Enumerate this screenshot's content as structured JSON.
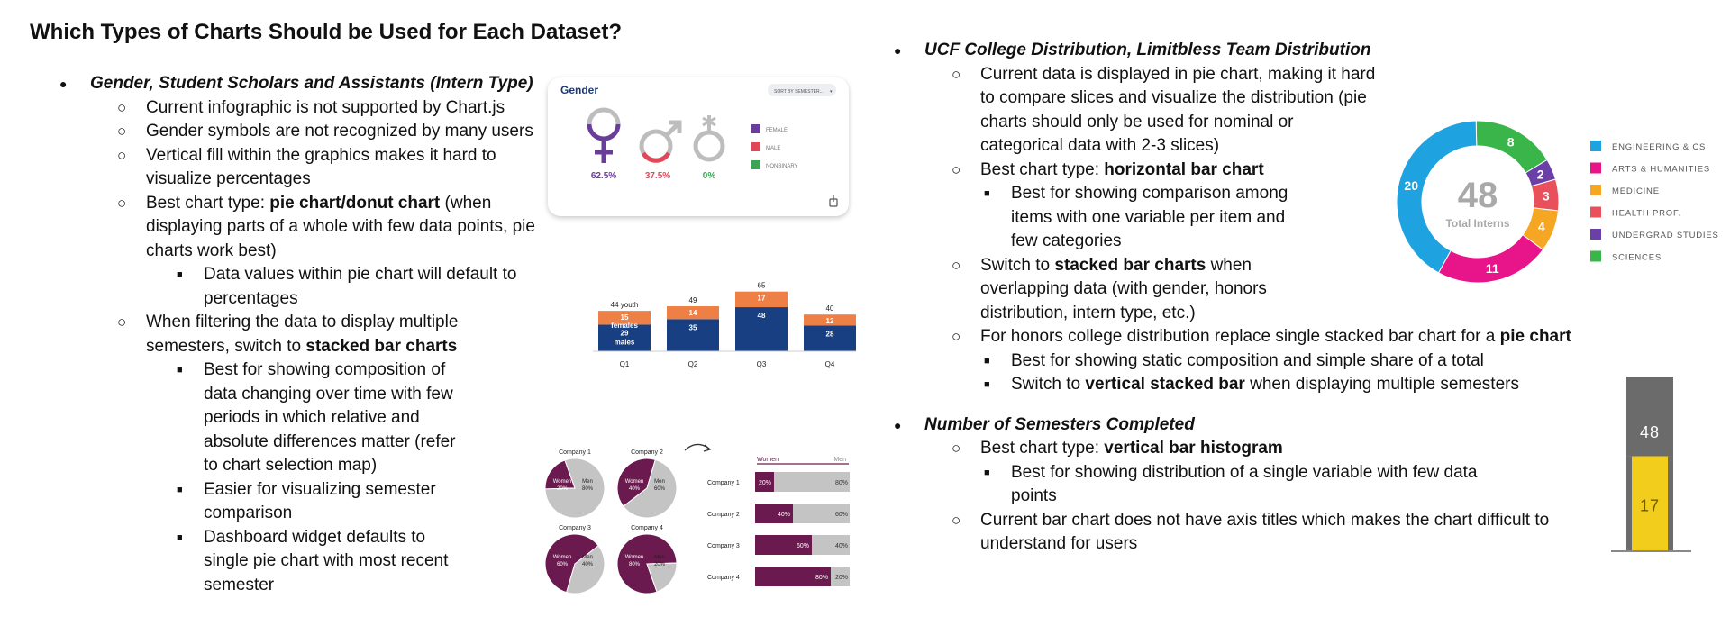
{
  "title": "Which Types of Charts Should be Used for Each Dataset?",
  "left": {
    "heading": "Gender, Student Scholars and Assistants (Intern Type)",
    "items": [
      "Current infographic is not supported by Chart.js",
      "Gender symbols are not recognized by many users",
      "Vertical fill within the graphics makes it hard to visualize percentages"
    ],
    "best_prefix": "Best chart type: ",
    "best_bold": "pie chart/donut chart",
    "best_suffix": " (when displaying parts of a whole with few data points, pie charts work best)",
    "best_sub": "Data values within pie chart will default to percentages",
    "filter_prefix": "When filtering the data to display multiple semesters, switch to ",
    "filter_bold": "stacked bar charts",
    "filter_subs": [
      "Best for showing composition of data changing over time with few periods in which relative and absolute differences matter (refer to chart selection map)",
      "Easier for visualizing semester comparison",
      "Dashboard widget defaults to single pie chart with most recent semester"
    ]
  },
  "right": {
    "heading1": "UCF College Distribution, Limitbless Team Distribution",
    "item1": "Current data is displayed in pie chart, making it hard to compare slices and visualize the distribution (pie charts should only be used for nominal or categorical data with 2-3 slices)",
    "best1_prefix": "Best chart type: ",
    "best1_bold": "horizontal bar chart",
    "best1_sub": "Best for showing comparison among items with one variable per item and few categories",
    "switch_prefix": "Switch to ",
    "switch_bold": "stacked bar charts",
    "switch_suffix": " when overlapping data (with gender, honors distribution, intern type, etc.)",
    "honors_prefix": "For honors college distribution replace single stacked bar chart for a ",
    "honors_bold": "pie chart",
    "honors_sub1": "Best for showing static composition and simple share of a total",
    "honors_sub2_prefix": "Switch to ",
    "honors_sub2_bold": "vertical stacked bar",
    "honors_sub2_suffix": " when displaying multiple semesters",
    "heading2": "Number of Semesters Completed",
    "best2_prefix": "Best chart type: ",
    "best2_bold": "vertical bar histogram",
    "best2_sub": "Best for showing distribution of a single variable with few data points",
    "item2": "Current bar chart does not have axis titles which makes the chart difficult to understand for users"
  },
  "gender_card": {
    "title": "Gender",
    "sort_label": "SORT BY SEMESTER...",
    "percents": [
      "62.5%",
      "37.5%",
      "0%"
    ],
    "legend": [
      "FEMALE",
      "MALE",
      "NONBINARY"
    ],
    "colors": {
      "female": "#6a3d9a",
      "male": "#e0485a",
      "nonbinary": "#3aa655"
    },
    "title_color": "#1f3a78"
  },
  "chart_data": [
    {
      "type": "bar",
      "stacked": true,
      "categories": [
        "Q1",
        "Q2",
        "Q3",
        "Q4"
      ],
      "series": [
        {
          "name": "males",
          "values": [
            29,
            35,
            48,
            28
          ],
          "color": "#173f82"
        },
        {
          "name": "females",
          "values": [
            15,
            14,
            17,
            12
          ],
          "color": "#ee8046"
        }
      ],
      "totals": [
        44,
        49,
        65,
        40
      ],
      "total_label_first": "44 youth",
      "ylim": [
        0,
        70
      ]
    },
    {
      "type": "pie",
      "charts": [
        {
          "title": "Company 1",
          "women": 20,
          "men": 80,
          "women_label": "Women\n20%",
          "men_label": "Men\n80%"
        },
        {
          "title": "Company 2",
          "women": 40,
          "men": 60,
          "women_label": "Women\n40%",
          "men_label": "Men\n60%"
        },
        {
          "title": "Company 3",
          "women": 60,
          "men": 40,
          "women_label": "Women\n60%",
          "men_label": "Men\n40%"
        },
        {
          "title": "Company 4",
          "women": 80,
          "men": 20,
          "women_label": "Women\n80%",
          "men_label": "Men\n20%"
        }
      ],
      "colors": {
        "women": "#6b1a4f",
        "men": "#c4c4c4"
      }
    },
    {
      "type": "bar",
      "orientation": "horizontal",
      "stacked": true,
      "legend": [
        "Women",
        "Men"
      ],
      "categories": [
        "Company 1",
        "Company 2",
        "Company 3",
        "Company 4"
      ],
      "series": [
        {
          "name": "Women",
          "values": [
            20,
            40,
            60,
            80
          ],
          "color": "#6b1a4f"
        },
        {
          "name": "Men",
          "values": [
            80,
            60,
            40,
            20
          ],
          "color": "#c4c4c4"
        }
      ]
    },
    {
      "type": "pie",
      "donut": true,
      "center_value": "48",
      "center_label": "Total Interns",
      "categories": [
        "ENGINEERING & CS",
        "ARTS & HUMANITIES",
        "MEDICINE",
        "HEALTH PROF.",
        "UNDERGRAD STUDIES",
        "SCIENCES"
      ],
      "values": [
        20,
        11,
        4,
        3,
        2,
        8
      ],
      "colors": [
        "#1ea3e0",
        "#e8148a",
        "#f5a623",
        "#e8505b",
        "#6a3fa8",
        "#3ab54a"
      ]
    },
    {
      "type": "bar",
      "stacked": true,
      "values": [
        17,
        48
      ],
      "labels": [
        "17",
        "48"
      ],
      "colors": [
        "#f2cd1b",
        "#6b6b6b"
      ]
    }
  ]
}
